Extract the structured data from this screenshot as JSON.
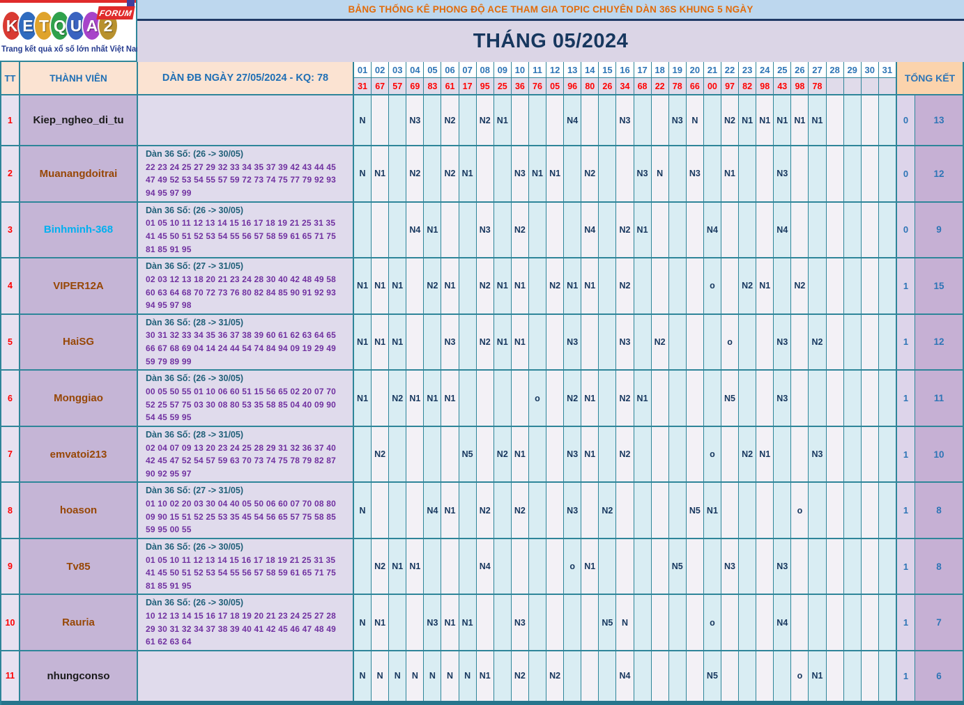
{
  "logo": {
    "letters": [
      {
        "ch": "K",
        "color": "#d93a32"
      },
      {
        "ch": "E",
        "color": "#2f6bbf"
      },
      {
        "ch": "T",
        "color": "#dfa32b"
      },
      {
        "ch": "Q",
        "color": "#2fa14c"
      },
      {
        "ch": "U",
        "color": "#3a63c0"
      },
      {
        "ch": "A",
        "color": "#a743c9"
      },
      {
        "ch": "2",
        "color": "#b8912e"
      }
    ],
    "forum_label": "FORUM",
    "tagline": "Trang kết quả xổ số lớn nhất Việt Nam"
  },
  "banner": {
    "text": "BẢNG THỐNG KÊ PHONG ĐỘ ACE THAM GIA TOPIC CHUYÊN DÀN 36S KHUNG 5 NGÀY"
  },
  "month": {
    "text": "THÁNG 05/2024"
  },
  "colors": {
    "accent_teal_border": "#2e8599",
    "banner_orange_text": "#e26b0a",
    "day_header_blue": "#2e75b6",
    "result_red": "#ff0000",
    "dan_numbers_purple": "#7030a0",
    "cell_value_navy": "#17375e"
  },
  "table": {
    "headers": {
      "tt": "TT",
      "member": "THÀNH VIÊN",
      "dan": "DÀN ĐB NGÀY 27/05/2024 - KQ: 78",
      "tongket": "TỔNG KẾT"
    },
    "days": [
      "01",
      "02",
      "03",
      "04",
      "05",
      "06",
      "07",
      "08",
      "09",
      "10",
      "11",
      "12",
      "13",
      "14",
      "15",
      "16",
      "17",
      "18",
      "19",
      "20",
      "21",
      "22",
      "23",
      "24",
      "25",
      "26",
      "27",
      "28",
      "29",
      "30",
      "31"
    ],
    "day_results": [
      "31",
      "67",
      "57",
      "69",
      "83",
      "61",
      "17",
      "95",
      "25",
      "36",
      "76",
      "05",
      "96",
      "80",
      "26",
      "34",
      "68",
      "22",
      "78",
      "66",
      "00",
      "97",
      "82",
      "98",
      "43",
      "98",
      "78",
      "",
      "",
      "",
      ""
    ],
    "rows": [
      {
        "tt": "1",
        "name": "Kiep_ngheo_di_tu",
        "name_color": "#1a1a1a",
        "dan_label": "",
        "dan_numbers": "",
        "cells": [
          "N",
          "",
          "",
          "N3",
          "",
          "N2",
          "",
          "N2",
          "N1",
          "",
          "",
          "",
          "N4",
          "",
          "",
          "N3",
          "",
          "",
          "N3",
          "N",
          "",
          "N2",
          "N1",
          "N1",
          "N1",
          "N1",
          "N1",
          "",
          "",
          "",
          ""
        ],
        "totals": [
          "0",
          "13"
        ]
      },
      {
        "tt": "2",
        "name": "Muanangdoitrai",
        "name_color": "#974706",
        "dan_label": "Dàn 36 Số: (26 -> 30/05)",
        "dan_numbers": "22 23 24 25 27 29 32 33 34 35 37 39 42 43 44 45 47 49 52 53 54 55 57 59 72 73 74 75 77 79 92 93 94 95 97 99",
        "cells": [
          "N",
          "N1",
          "",
          "N2",
          "",
          "N2",
          "N1",
          "",
          "",
          "N3",
          "N1",
          "N1",
          "",
          "N2",
          "",
          "",
          "N3",
          "N",
          "",
          "N3",
          "",
          "N1",
          "",
          "",
          "N3",
          "",
          "",
          "",
          "",
          "",
          ""
        ],
        "totals": [
          "0",
          "12"
        ]
      },
      {
        "tt": "3",
        "name": "Binhminh-368",
        "name_color": "#00b0f0",
        "dan_label": "Dàn 36 Số: (26 -> 30/05)",
        "dan_numbers": "01 05 10 11 12 13 14 15 16 17 18 19 21 25 31 35 41 45 50 51 52 53 54 55 56 57 58 59 61 65 71 75 81 85 91 95",
        "cells": [
          "",
          "",
          "",
          "N4",
          "N1",
          "",
          "",
          "N3",
          "",
          "N2",
          "",
          "",
          "",
          "N4",
          "",
          "N2",
          "N1",
          "",
          "",
          "",
          "N4",
          "",
          "",
          "",
          "N4",
          "",
          "",
          "",
          "",
          "",
          ""
        ],
        "totals": [
          "0",
          "9"
        ]
      },
      {
        "tt": "4",
        "name": "VIPER12A",
        "name_color": "#974706",
        "dan_label": "Dàn 36 Số: (27 -> 31/05)",
        "dan_numbers": "02 03 12 13 18 20 21 23 24 28 30 40 42 48 49 58 60 63 64 68 70 72 73 76 80 82 84 85 90 91 92 93 94 95 97 98",
        "cells": [
          "N1",
          "N1",
          "N1",
          "",
          "N2",
          "N1",
          "",
          "N2",
          "N1",
          "N1",
          "",
          "N2",
          "N1",
          "N1",
          "",
          "N2",
          "",
          "",
          "",
          "",
          "o",
          "",
          "N2",
          "N1",
          "",
          "N2",
          "",
          "",
          "",
          "",
          ""
        ],
        "totals": [
          "1",
          "15"
        ]
      },
      {
        "tt": "5",
        "name": "HaiSG",
        "name_color": "#974706",
        "dan_label": "Dàn 36 Số: (28 -> 31/05)",
        "dan_numbers": "30 31 32 33 34 35 36 37 38 39 60 61 62 63 64 65 66 67 68 69 04 14 24 44 54 74 84 94 09 19 29 49 59 79 89 99",
        "cells": [
          "N1",
          "N1",
          "N1",
          "",
          "",
          "N3",
          "",
          "N2",
          "N1",
          "N1",
          "",
          "",
          "N3",
          "",
          "",
          "N3",
          "",
          "N2",
          "",
          "",
          "",
          "o",
          "",
          "",
          "N3",
          "",
          "N2",
          "",
          "",
          "",
          ""
        ],
        "totals": [
          "1",
          "12"
        ]
      },
      {
        "tt": "6",
        "name": "Monggiao",
        "name_color": "#974706",
        "dan_label": "Dàn 36 Số: (26 -> 30/05)",
        "dan_numbers": "00 05 50 55 01 10 06 60 51 15 56 65 02 20 07 70 52 25 57 75 03 30 08 80 53 35 58 85 04 40 09 90 54 45 59 95",
        "cells": [
          "N1",
          "",
          "N2",
          "N1",
          "N1",
          "N1",
          "",
          "",
          "",
          "",
          "o",
          "",
          "N2",
          "N1",
          "",
          "N2",
          "N1",
          "",
          "",
          "",
          "",
          "N5",
          "",
          "",
          "N3",
          "",
          "",
          "",
          "",
          "",
          ""
        ],
        "totals": [
          "1",
          "11"
        ]
      },
      {
        "tt": "7",
        "name": "emvatoi213",
        "name_color": "#974706",
        "dan_label": "Dàn 36 Số: (28 -> 31/05)",
        "dan_numbers": "02 04 07 09 13 20 23 24 25 28 29 31 32 36 37 40 42 45 47 52 54 57 59 63 70 73 74 75 78 79 82 87 90 92 95 97",
        "cells": [
          "",
          "N2",
          "",
          "",
          "",
          "",
          "N5",
          "",
          "N2",
          "N1",
          "",
          "",
          "N3",
          "N1",
          "",
          "N2",
          "",
          "",
          "",
          "",
          "o",
          "",
          "N2",
          "N1",
          "",
          "",
          "N3",
          "",
          "",
          "",
          ""
        ],
        "totals": [
          "1",
          "10"
        ]
      },
      {
        "tt": "8",
        "name": "hoason",
        "name_color": "#974706",
        "dan_label": "Dàn 36 Số: (27 -> 31/05)",
        "dan_numbers": "01 10 02 20 03 30 04 40 05 50 06 60 07 70 08 80 09 90 15 51 52 25 53 35 45 54 56 65 57 75 58 85 59 95 00 55",
        "cells": [
          "N",
          "",
          "",
          "",
          "N4",
          "N1",
          "",
          "N2",
          "",
          "N2",
          "",
          "",
          "N3",
          "",
          "N2",
          "",
          "",
          "",
          "",
          "N5",
          "N1",
          "",
          "",
          "",
          "",
          "o",
          "",
          "",
          "",
          "",
          ""
        ],
        "totals": [
          "1",
          "8"
        ]
      },
      {
        "tt": "9",
        "name": "Tv85",
        "name_color": "#974706",
        "dan_label": "Dàn 36 Số: (26 -> 30/05)",
        "dan_numbers": "01 05 10 11 12 13 14 15 16 17 18 19 21 25 31 35 41 45 50 51 52 53 54 55 56 57 58 59 61 65 71 75 81 85 91 95",
        "cells": [
          "",
          "N2",
          "N1",
          "N1",
          "",
          "",
          "",
          "N4",
          "",
          "",
          "",
          "",
          "o",
          "N1",
          "",
          "",
          "",
          "",
          "N5",
          "",
          "",
          "N3",
          "",
          "",
          "N3",
          "",
          "",
          "",
          "",
          "",
          ""
        ],
        "totals": [
          "1",
          "8"
        ]
      },
      {
        "tt": "10",
        "name": "Rauria",
        "name_color": "#974706",
        "dan_label": "Dàn 36 Số: (26 -> 30/05)",
        "dan_numbers": "10 12 13 14 15 16 17 18 19 20 21 23 24 25 27 28 29 30 31 32 34 37 38 39 40 41 42 45 46 47 48 49 61 62 63 64",
        "cells": [
          "N",
          "N1",
          "",
          "",
          "N3",
          "N1",
          "N1",
          "",
          "",
          "N3",
          "",
          "",
          "",
          "",
          "N5",
          "N",
          "",
          "",
          "",
          "",
          "o",
          "",
          "",
          "",
          "N4",
          "",
          "",
          "",
          "",
          "",
          ""
        ],
        "totals": [
          "1",
          "7"
        ]
      },
      {
        "tt": "11",
        "name": "nhungconso",
        "name_color": "#1a1a1a",
        "dan_label": "",
        "dan_numbers": "",
        "cells": [
          "N",
          "N",
          "N",
          "N",
          "N",
          "N",
          "N",
          "N1",
          "",
          "N2",
          "",
          "N2",
          "",
          "",
          "",
          "N4",
          "",
          "",
          "",
          "",
          "N5",
          "",
          "",
          "",
          "",
          "o",
          "N1",
          "",
          "",
          "",
          ""
        ],
        "totals": [
          "1",
          "6"
        ]
      }
    ]
  }
}
